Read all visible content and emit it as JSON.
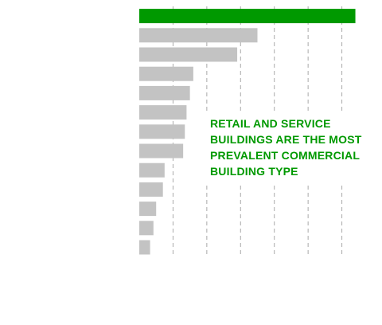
{
  "chart_data": {
    "type": "bar",
    "orientation": "horizontal",
    "values": [
      6.4,
      3.5,
      2.9,
      1.6,
      1.5,
      1.4,
      1.35,
      1.3,
      0.75,
      0.7,
      0.5,
      0.42,
      0.32
    ],
    "highlight_index": 0,
    "xlim": [
      0,
      7
    ],
    "grid": true,
    "annotation": "Retail and service buildings are the most prevalent commercial building type"
  },
  "colors": {
    "highlight": "#009900",
    "bar": "#c3c3c3",
    "grid": "#aaaaaa",
    "annotation_text": "#009900"
  }
}
